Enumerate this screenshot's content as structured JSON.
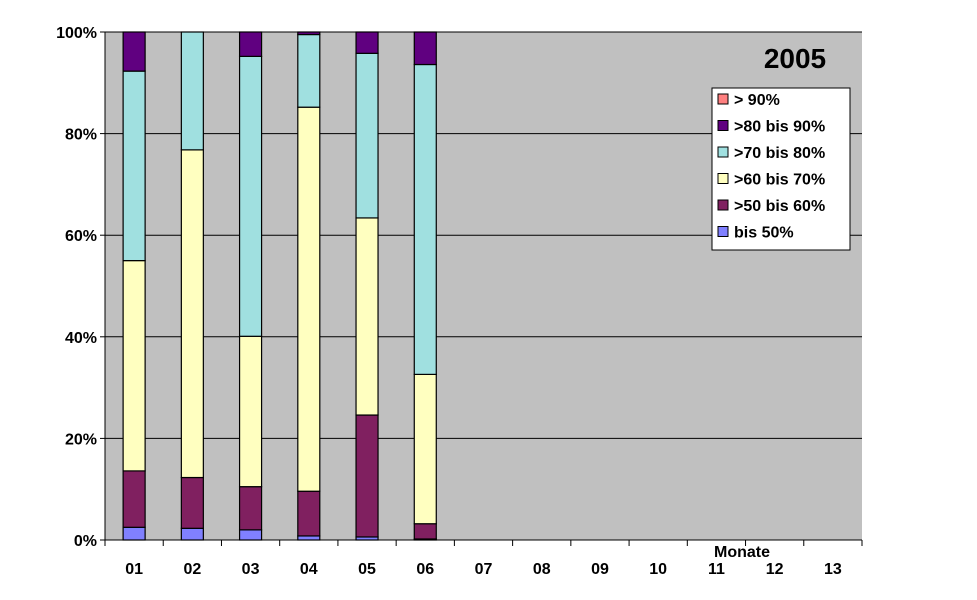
{
  "chart_data": {
    "type": "bar",
    "stacked": "percent",
    "title": "2005",
    "xlabel": "Monate",
    "ylabel": "",
    "ylim": [
      0,
      100
    ],
    "y_ticks": [
      "0%",
      "20%",
      "40%",
      "60%",
      "80%",
      "100%"
    ],
    "categories": [
      "01",
      "02",
      "03",
      "04",
      "05",
      "06",
      "07",
      "08",
      "09",
      "10",
      "11",
      "12",
      "13"
    ],
    "grid": "horizontal",
    "legend_position": "top-right",
    "plot_background": "#c0c0c0",
    "series": [
      {
        "name": "bis 50%",
        "color": "#8080ff",
        "values": [
          2.5,
          2.3,
          2.0,
          0.8,
          0.6,
          0.2,
          null,
          null,
          null,
          null,
          null,
          null,
          null
        ]
      },
      {
        "name": ">50 bis 60%",
        "color": "#802060",
        "values": [
          11.1,
          10.0,
          8.5,
          8.8,
          24.0,
          3.0,
          null,
          null,
          null,
          null,
          null,
          null,
          null
        ]
      },
      {
        "name": ">60 bis 70%",
        "color": "#ffffc0",
        "values": [
          41.4,
          64.5,
          29.6,
          75.6,
          38.8,
          29.4,
          null,
          null,
          null,
          null,
          null,
          null,
          null
        ]
      },
      {
        "name": ">70 bis 80%",
        "color": "#a0e0e0",
        "values": [
          37.3,
          23.2,
          55.1,
          14.3,
          32.4,
          61.0,
          null,
          null,
          null,
          null,
          null,
          null,
          null
        ]
      },
      {
        "name": ">80 bis 90%",
        "color": "#600080",
        "values": [
          7.7,
          0.0,
          4.8,
          0.5,
          4.2,
          6.4,
          null,
          null,
          null,
          null,
          null,
          null,
          null
        ]
      },
      {
        "name": "> 90%",
        "color": "#ff8080",
        "values": [
          0,
          0,
          0,
          0,
          0,
          0,
          null,
          null,
          null,
          null,
          null,
          null,
          null
        ]
      }
    ],
    "legend_order": [
      "> 90%",
      ">80 bis 90%",
      ">70 bis 80%",
      ">60 bis 70%",
      ">50 bis 60%",
      "bis 50%"
    ]
  }
}
